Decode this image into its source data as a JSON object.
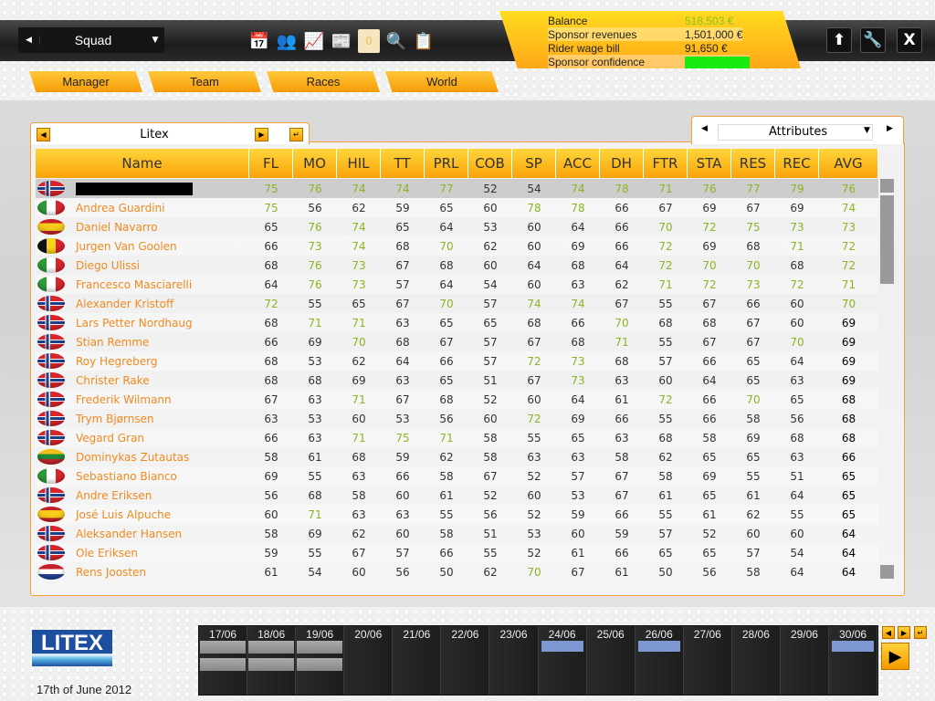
{
  "topbar": {
    "view_select": "Squad",
    "icons": [
      "calendar-icon",
      "staff-icon",
      "chart-icon",
      "news-icon",
      "mail-icon",
      "search-icon",
      "clipboard-icon"
    ],
    "mail_count": "0",
    "buttons": {
      "home": "⬆",
      "tools": "🔧",
      "close": "X"
    }
  },
  "finance": {
    "balance_label": "Balance",
    "balance": "518,503 €",
    "revenue_label": "Sponsor revenues",
    "revenue": "1,501,000 €",
    "wage_label": "Rider wage bill",
    "wage": "91,650 €",
    "confidence_label": "Sponsor confidence",
    "confidence_color": "#19ea10"
  },
  "nav": [
    "Manager",
    "Team",
    "Races",
    "World"
  ],
  "team_selector": "Litex",
  "view_selector": "Attributes",
  "colors": {
    "accent": "#f9a308",
    "name": "#f08a1f",
    "high_value": "#89b523"
  },
  "table": {
    "columns": [
      "Name",
      "FL",
      "MO",
      "HIL",
      "TT",
      "PRL",
      "COB",
      "SP",
      "ACC",
      "DH",
      "FTR",
      "STA",
      "RES",
      "REC",
      "AVG"
    ],
    "rows": [
      {
        "flag": "NO",
        "name": "",
        "redacted": true,
        "v": [
          75,
          76,
          74,
          74,
          77,
          52,
          54,
          74,
          78,
          71,
          76,
          77,
          79,
          76
        ]
      },
      {
        "flag": "IT",
        "name": "Andrea Guardini",
        "v": [
          75,
          56,
          62,
          59,
          65,
          60,
          78,
          78,
          66,
          67,
          69,
          67,
          69,
          74
        ]
      },
      {
        "flag": "ES",
        "name": "Daniel Navarro",
        "v": [
          65,
          76,
          74,
          65,
          64,
          53,
          60,
          64,
          66,
          70,
          72,
          75,
          73,
          73
        ]
      },
      {
        "flag": "BE",
        "name": "Jurgen Van Goolen",
        "v": [
          66,
          73,
          74,
          68,
          70,
          62,
          60,
          69,
          66,
          72,
          69,
          68,
          71,
          72
        ]
      },
      {
        "flag": "IT",
        "name": "Diego Ulissi",
        "v": [
          68,
          76,
          73,
          67,
          68,
          60,
          64,
          68,
          64,
          72,
          70,
          70,
          68,
          72
        ]
      },
      {
        "flag": "IT",
        "name": "Francesco Masciarelli",
        "v": [
          64,
          76,
          73,
          57,
          64,
          54,
          60,
          63,
          62,
          71,
          72,
          73,
          72,
          71
        ]
      },
      {
        "flag": "NO",
        "name": "Alexander Kristoff",
        "v": [
          72,
          55,
          65,
          67,
          70,
          57,
          74,
          74,
          67,
          55,
          67,
          66,
          60,
          70
        ]
      },
      {
        "flag": "NO",
        "name": "Lars Petter Nordhaug",
        "v": [
          68,
          71,
          71,
          63,
          65,
          65,
          68,
          66,
          70,
          68,
          68,
          67,
          60,
          69
        ]
      },
      {
        "flag": "NO",
        "name": "Stian Remme",
        "v": [
          66,
          69,
          70,
          68,
          67,
          57,
          67,
          68,
          71,
          55,
          67,
          67,
          70,
          69
        ]
      },
      {
        "flag": "NO",
        "name": "Roy Hegreberg",
        "v": [
          68,
          53,
          62,
          64,
          66,
          57,
          72,
          73,
          68,
          57,
          66,
          65,
          64,
          69
        ]
      },
      {
        "flag": "NO",
        "name": "Christer Rake",
        "v": [
          68,
          68,
          69,
          63,
          65,
          51,
          67,
          73,
          63,
          60,
          64,
          65,
          63,
          69
        ]
      },
      {
        "flag": "NO",
        "name": "Frederik Wilmann",
        "v": [
          67,
          63,
          71,
          67,
          68,
          52,
          60,
          64,
          61,
          72,
          66,
          70,
          65,
          68
        ]
      },
      {
        "flag": "NO",
        "name": "Trym Bjørnsen",
        "v": [
          63,
          53,
          60,
          53,
          56,
          60,
          72,
          69,
          66,
          55,
          66,
          58,
          56,
          68
        ]
      },
      {
        "flag": "NO",
        "name": "Vegard Gran",
        "v": [
          66,
          63,
          71,
          75,
          71,
          58,
          55,
          65,
          63,
          68,
          58,
          69,
          68,
          68
        ]
      },
      {
        "flag": "LT",
        "name": "Dominykas Zutautas",
        "v": [
          58,
          61,
          68,
          59,
          62,
          58,
          63,
          63,
          58,
          62,
          65,
          65,
          63,
          66
        ]
      },
      {
        "flag": "IT",
        "name": "Sebastiano Bianco",
        "v": [
          69,
          55,
          63,
          66,
          58,
          67,
          52,
          57,
          67,
          58,
          69,
          55,
          51,
          65
        ]
      },
      {
        "flag": "NO",
        "name": "Andre Eriksen",
        "v": [
          56,
          68,
          58,
          60,
          61,
          52,
          60,
          53,
          67,
          61,
          65,
          61,
          64,
          65
        ]
      },
      {
        "flag": "ES",
        "name": "José Luis Alpuche",
        "v": [
          60,
          71,
          63,
          63,
          55,
          56,
          52,
          59,
          66,
          55,
          61,
          62,
          55,
          65
        ]
      },
      {
        "flag": "NO",
        "name": "Aleksander Hansen",
        "v": [
          58,
          69,
          62,
          60,
          58,
          51,
          53,
          60,
          59,
          57,
          52,
          60,
          60,
          64
        ]
      },
      {
        "flag": "NO",
        "name": "Ole Eriksen",
        "v": [
          59,
          55,
          67,
          57,
          66,
          55,
          52,
          61,
          66,
          65,
          65,
          57,
          54,
          64
        ]
      },
      {
        "flag": "NL",
        "name": "Rens Joosten",
        "v": [
          61,
          54,
          60,
          56,
          50,
          62,
          70,
          67,
          61,
          50,
          56,
          58,
          64,
          64
        ]
      }
    ]
  },
  "footer": {
    "logo": "LITEX",
    "date": "17th of June 2012"
  },
  "calendar": [
    {
      "d": "17/06",
      "ev": 2,
      "race": false
    },
    {
      "d": "18/06",
      "ev": 2,
      "race": false
    },
    {
      "d": "19/06",
      "ev": 2,
      "race": false
    },
    {
      "d": "20/06",
      "ev": 0,
      "race": false
    },
    {
      "d": "21/06",
      "ev": 0,
      "race": false
    },
    {
      "d": "22/06",
      "ev": 0,
      "race": false
    },
    {
      "d": "23/06",
      "ev": 0,
      "race": false
    },
    {
      "d": "24/06",
      "ev": 0,
      "race": true
    },
    {
      "d": "25/06",
      "ev": 0,
      "race": false
    },
    {
      "d": "26/06",
      "ev": 0,
      "race": true
    },
    {
      "d": "27/06",
      "ev": 0,
      "race": false
    },
    {
      "d": "28/06",
      "ev": 0,
      "race": false
    },
    {
      "d": "29/06",
      "ev": 0,
      "race": false
    },
    {
      "d": "30/06",
      "ev": 0,
      "race": true
    }
  ]
}
